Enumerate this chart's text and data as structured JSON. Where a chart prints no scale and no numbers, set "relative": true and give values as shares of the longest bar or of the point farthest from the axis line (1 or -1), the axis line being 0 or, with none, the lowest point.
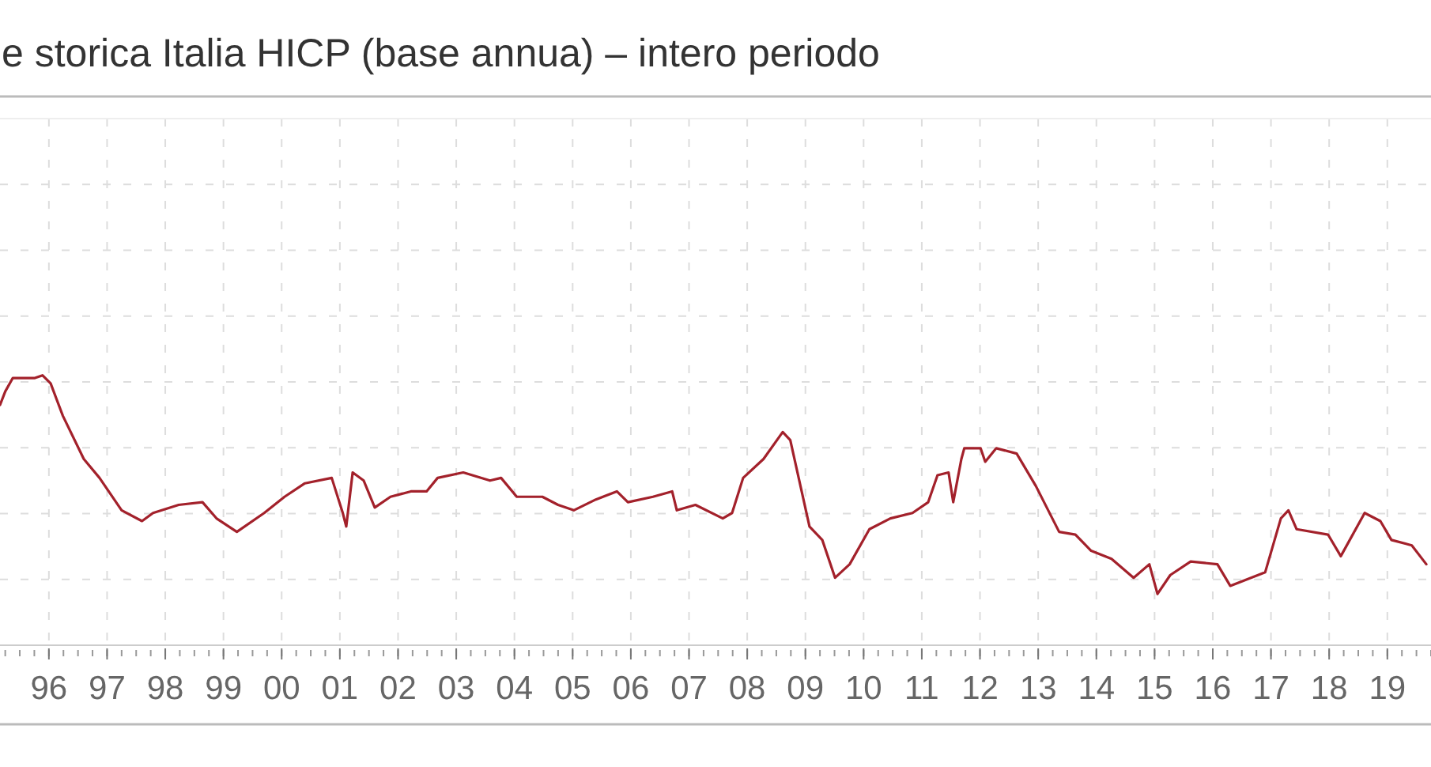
{
  "chart_data": {
    "type": "line",
    "title": "e storica Italia HICP (base annua) – intero periodo",
    "relative": true,
    "grid": true,
    "marker": "none",
    "line_style": "solid",
    "xlim": [
      1995.16,
      2019.75
    ],
    "xticks": [
      {
        "value": 1996,
        "label": "96"
      },
      {
        "value": 1997,
        "label": "97"
      },
      {
        "value": 1998,
        "label": "98"
      },
      {
        "value": 1999,
        "label": "99"
      },
      {
        "value": 2000,
        "label": "00"
      },
      {
        "value": 2001,
        "label": "01"
      },
      {
        "value": 2002,
        "label": "02"
      },
      {
        "value": 2003,
        "label": "03"
      },
      {
        "value": 2004,
        "label": "04"
      },
      {
        "value": 2005,
        "label": "05"
      },
      {
        "value": 2006,
        "label": "06"
      },
      {
        "value": 2007,
        "label": "07"
      },
      {
        "value": 2008,
        "label": "08"
      },
      {
        "value": 2009,
        "label": "09"
      },
      {
        "value": 2010,
        "label": "10"
      },
      {
        "value": 2011,
        "label": "11"
      },
      {
        "value": 2012,
        "label": "12"
      },
      {
        "value": 2013,
        "label": "13"
      },
      {
        "value": 2014,
        "label": "14"
      },
      {
        "value": 2015,
        "label": "15"
      },
      {
        "value": 2016,
        "label": "16"
      },
      {
        "value": 2017,
        "label": "17"
      },
      {
        "value": 2018,
        "label": "18"
      },
      {
        "value": 2019,
        "label": "19"
      }
    ],
    "series": [
      {
        "color": "#a3212b",
        "x": [
          1995.16,
          1995.25,
          1995.38,
          1995.76,
          1995.89,
          1996.03,
          1996.24,
          1996.6,
          1996.87,
          1997.25,
          1997.6,
          1997.79,
          1998.23,
          1998.64,
          1998.88,
          1999.23,
          1999.7,
          2000.05,
          2000.4,
          2000.86,
          2001.05,
          2001.11,
          2001.22,
          2001.41,
          2001.6,
          2001.87,
          2002.22,
          2002.49,
          2002.68,
          2003.12,
          2003.58,
          2003.77,
          2004.04,
          2004.48,
          2004.75,
          2005.02,
          2005.4,
          2005.76,
          2005.95,
          2006.38,
          2006.71,
          2006.79,
          2007.11,
          2007.58,
          2007.74,
          2007.93,
          2008.28,
          2008.61,
          2008.74,
          2009.07,
          2009.29,
          2009.51,
          2009.76,
          2010.1,
          2010.46,
          2010.84,
          2011.11,
          2011.27,
          2011.46,
          2011.54,
          2011.68,
          2011.73,
          2012.01,
          2012.09,
          2012.28,
          2012.63,
          2012.96,
          2013.36,
          2013.64,
          2013.91,
          2014.26,
          2014.64,
          2014.91,
          2015.05,
          2015.27,
          2015.62,
          2016.08,
          2016.3,
          2016.9,
          2017.17,
          2017.3,
          2017.44,
          2017.98,
          2018.2,
          2018.61,
          2018.88,
          2019.07,
          2019.42,
          2019.67
        ],
        "values": [
          0.89,
          0.94,
          0.99,
          0.99,
          1.0,
          0.97,
          0.85,
          0.69,
          0.62,
          0.5,
          0.46,
          0.49,
          0.52,
          0.53,
          0.47,
          0.42,
          0.49,
          0.55,
          0.6,
          0.62,
          0.49,
          0.44,
          0.64,
          0.61,
          0.51,
          0.55,
          0.57,
          0.57,
          0.62,
          0.64,
          0.61,
          0.62,
          0.55,
          0.55,
          0.52,
          0.5,
          0.54,
          0.57,
          0.53,
          0.55,
          0.57,
          0.5,
          0.52,
          0.47,
          0.49,
          0.62,
          0.69,
          0.79,
          0.76,
          0.44,
          0.39,
          0.25,
          0.3,
          0.43,
          0.47,
          0.49,
          0.53,
          0.63,
          0.64,
          0.53,
          0.69,
          0.73,
          0.73,
          0.68,
          0.73,
          0.71,
          0.59,
          0.42,
          0.41,
          0.35,
          0.32,
          0.25,
          0.3,
          0.19,
          0.26,
          0.31,
          0.3,
          0.22,
          0.27,
          0.47,
          0.5,
          0.43,
          0.41,
          0.33,
          0.49,
          0.46,
          0.39,
          0.37,
          0.3
        ]
      }
    ]
  }
}
